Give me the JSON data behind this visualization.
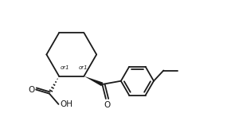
{
  "bg_color": "#ffffff",
  "line_color": "#1a1a1a",
  "line_width": 1.3,
  "fig_width": 2.9,
  "fig_height": 1.52,
  "dpi": 100,
  "xlim": [
    0.0,
    8.5
  ],
  "ylim": [
    -0.5,
    5.5
  ]
}
